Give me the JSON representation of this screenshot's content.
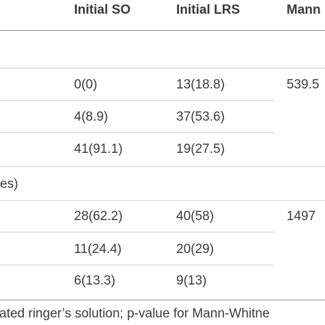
{
  "table": {
    "headers": {
      "col1": "Initial SO",
      "col2": "Initial LRS",
      "col3": "Mann"
    },
    "group_label": "es)",
    "rows": [
      {
        "c1": "0(0)",
        "c2": "13(18.8)"
      },
      {
        "c1": "4(8.9)",
        "c2": "37(53.6)"
      },
      {
        "c1": "41(91.1)",
        "c2": "19(27.5)"
      },
      {
        "c1": "28(62.2)",
        "c2": "40(58)"
      },
      {
        "c1": "11(24.4)",
        "c2": "20(29)"
      },
      {
        "c1": "6(13.3)",
        "c2": "9(13)"
      }
    ],
    "stats": {
      "first": "539.5",
      "second": "1497"
    }
  },
  "footnote": "ated ringer’s solution; p-value for Mann-Whitne"
}
